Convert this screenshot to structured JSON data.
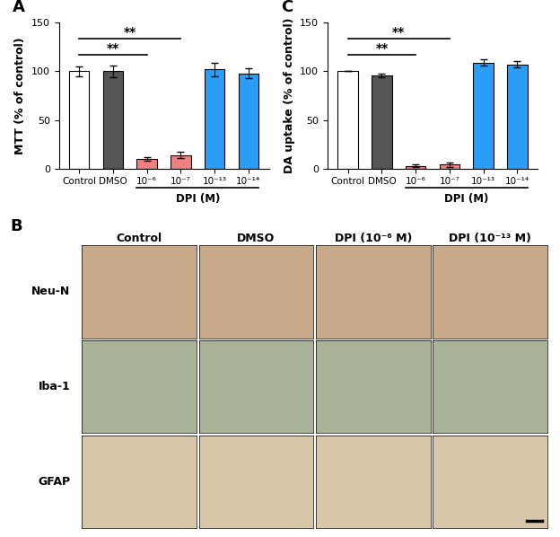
{
  "chart_data": [
    {
      "type": "bar",
      "title": "A",
      "categories": [
        "Control",
        "DMSO",
        "10⁻⁶",
        "10⁻⁷",
        "10⁻¹³",
        "10⁻¹⁴"
      ],
      "values": [
        100,
        100,
        10,
        14,
        102,
        98
      ],
      "errors": [
        5,
        6,
        2,
        3,
        7,
        5
      ],
      "colors": [
        "#ffffff",
        "#555555",
        "#f08080",
        "#f08080",
        "#2a9df4",
        "#2a9df4"
      ],
      "y_label": "MTT (% of control)",
      "ylim": [
        0,
        150
      ],
      "yticks": [
        0,
        50,
        100,
        150
      ],
      "x_group": {
        "label": "DPI (M)",
        "from": "10⁻⁶",
        "to": "10⁻¹⁴"
      },
      "significance": [
        {
          "from": "Control",
          "to": "10⁻⁶",
          "label": "**"
        },
        {
          "from": "Control",
          "to": "10⁻⁷",
          "label": "**"
        }
      ]
    },
    {
      "type": "bar",
      "title": "C",
      "categories": [
        "Control",
        "DMSO",
        "10⁻⁶",
        "10⁻⁷",
        "10⁻¹³",
        "10⁻¹⁴"
      ],
      "values": [
        100,
        96,
        3,
        4,
        109,
        107
      ],
      "errors": [
        0,
        2,
        1,
        2,
        3,
        3
      ],
      "colors": [
        "#ffffff",
        "#555555",
        "#f08080",
        "#f08080",
        "#2a9df4",
        "#2a9df4"
      ],
      "y_label": "DA uptake (% of control)",
      "ylim": [
        0,
        150
      ],
      "yticks": [
        0,
        50,
        100,
        150
      ],
      "x_group": {
        "label": "DPI (M)",
        "from": "10⁻⁶",
        "to": "10⁻¹⁴"
      },
      "significance": [
        {
          "from": "Control",
          "to": "10⁻⁶",
          "label": "**"
        },
        {
          "from": "Control",
          "to": "10⁻⁷",
          "label": "**"
        }
      ]
    }
  ],
  "image_panel": {
    "title": "B",
    "columns": [
      "Control",
      "DMSO",
      "DPI (10⁻⁶ M)",
      "DPI (10⁻¹³ M)"
    ],
    "rows": [
      "Neu-N",
      "Iba-1",
      "GFAP"
    ]
  }
}
